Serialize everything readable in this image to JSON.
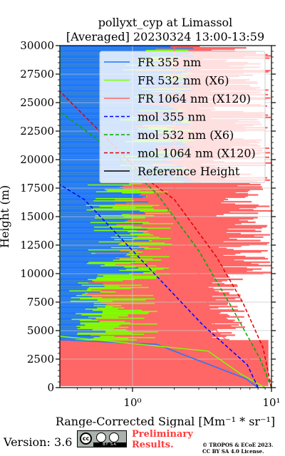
{
  "chart_data": {
    "type": "line",
    "title": "pollyxt_cyp at Limassol",
    "subtitle": "[Averaged] 20230324 13:00-13:59",
    "xlabel": "Range-Corrected Signal [Mm⁻¹ * sr⁻¹]",
    "ylabel": "Height (m)",
    "xscale": "log",
    "xlim": [
      0.3,
      10
    ],
    "ylim": [
      0,
      30000
    ],
    "xticks": [
      1,
      10
    ],
    "xtick_labels": [
      "10⁰",
      "10¹"
    ],
    "yticks": [
      0,
      2500,
      5000,
      7500,
      10000,
      12500,
      15000,
      17500,
      20000,
      22500,
      25000,
      27500,
      30000
    ],
    "ytick_labels": [
      "0",
      "2500",
      "5000",
      "7500",
      "10000",
      "12500",
      "15000",
      "17500",
      "20000",
      "22500",
      "25000",
      "27500",
      "30000"
    ],
    "grid": true,
    "legend_position": "upper-right",
    "series": [
      {
        "name": "FR 355 nm",
        "color": "#1f77ff",
        "style": "solid",
        "x": [
          8.0,
          6.5,
          2.2,
          1.5,
          0.3,
          0.3,
          0.3,
          0.3
        ],
        "y": [
          0,
          800,
          3000,
          3800,
          4200,
          10000,
          20000,
          30000
        ]
      },
      {
        "name": "FR 532 nm (X6)",
        "color": "#7fff00",
        "style": "solid",
        "x": [
          9.0,
          6.0,
          3.5,
          0.3,
          0.3,
          0.3,
          0.3
        ],
        "y": [
          0,
          1200,
          3200,
          4500,
          10000,
          20000,
          30000
        ]
      },
      {
        "name": "FR 1064 nm (X120)",
        "color": "#ff6666",
        "style": "solid",
        "x": [
          10,
          9,
          6,
          4,
          3,
          2,
          2,
          2,
          2
        ],
        "y": [
          0,
          1500,
          3000,
          5000,
          10000,
          15000,
          17500,
          20000,
          30000
        ]
      },
      {
        "name": "mol 355 nm",
        "color": "#0000ff",
        "style": "dashed",
        "x": [
          8.0,
          6.7,
          3.2,
          1.2,
          0.45,
          0.3
        ],
        "y": [
          0,
          2000,
          5500,
          11000,
          16500,
          17800
        ]
      },
      {
        "name": "mol 532 nm (X6)",
        "color": "#00aa00",
        "style": "dashed",
        "x": [
          10,
          8.3,
          5.2,
          3.0,
          1.5,
          0.6,
          0.3
        ],
        "y": [
          0,
          2500,
          7000,
          12000,
          17000,
          21500,
          24200
        ]
      },
      {
        "name": "mol 1064 nm (X120)",
        "color": "#dd0000",
        "style": "dashed",
        "x": [
          10,
          8.7,
          6.2,
          4.0,
          2.0,
          1.2,
          0.7,
          0.3
        ],
        "y": [
          0,
          3500,
          7500,
          11500,
          16500,
          18500,
          21500,
          26000
        ]
      },
      {
        "name": "Reference Height",
        "color": "#000000",
        "style": "solid",
        "x": [],
        "y": []
      }
    ]
  },
  "footer": {
    "version": "Version: 3.6",
    "cc_strip": "BY SA",
    "prelim_line1": "Preliminary",
    "prelim_line2": "Results.",
    "copyright_line1": "© TROPOS & ECoE 2023.",
    "copyright_line2": "CC BY SA 4.0 License."
  }
}
